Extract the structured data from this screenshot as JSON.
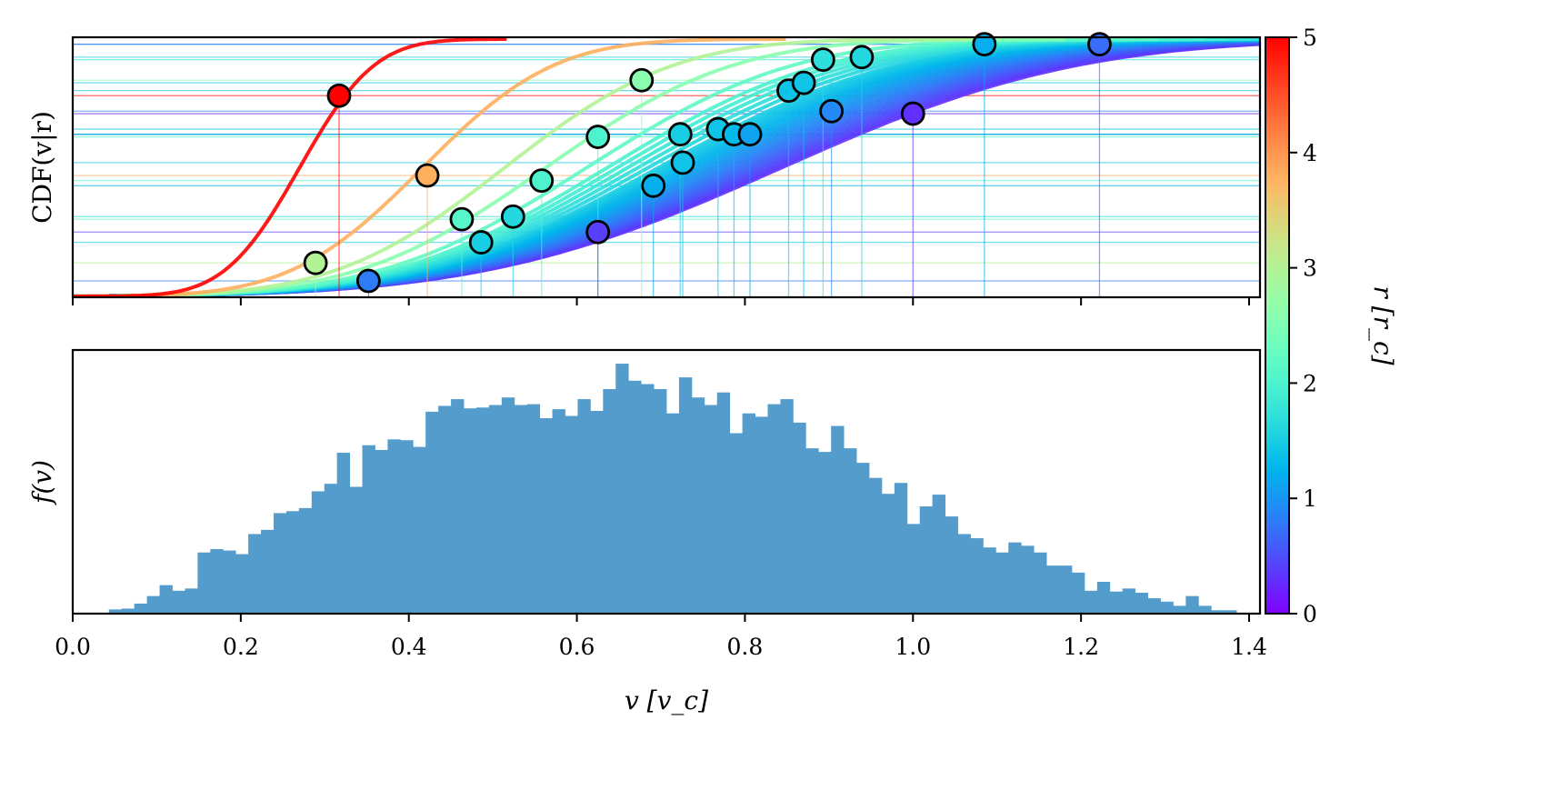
{
  "chart_data": [
    {
      "type": "line",
      "panel": "top",
      "ylabel": "CDF(v|r)",
      "xlim": [
        0,
        1.413
      ],
      "ylim": [
        0,
        1.0
      ],
      "xticks": [
        0.0,
        0.2,
        0.4,
        0.6,
        0.8,
        1.0,
        1.2,
        1.4
      ],
      "show_xtick_labels": false,
      "curve_model": {
        "type": "normal_cdf",
        "mean_intercept": 0.88,
        "mean_slope": -0.122,
        "sd_intercept": 0.29,
        "sd_slope": -0.044,
        "vmax_sd_multiple": 2.2
      },
      "curve_r_values": [
        0.3,
        0.35,
        0.4,
        0.45,
        0.5,
        0.55,
        0.6,
        0.65,
        0.7,
        0.75,
        0.8,
        0.85,
        0.9,
        0.95,
        1.0,
        1.05,
        1.1,
        1.15,
        1.2,
        1.25,
        1.3,
        1.35,
        1.4,
        1.45,
        1.5,
        1.6,
        1.7,
        1.8,
        1.9,
        2.0,
        2.2,
        2.6,
        3.0,
        3.8,
        5.0
      ],
      "points": [
        {
          "v": 0.317,
          "cdf": 0.78,
          "r": 5.0
        },
        {
          "v": 0.422,
          "cdf": 0.47,
          "r": 3.8
        },
        {
          "v": 0.289,
          "cdf": 0.13,
          "r": 3.0
        },
        {
          "v": 0.352,
          "cdf": 0.06,
          "r": 0.8
        },
        {
          "v": 0.677,
          "cdf": 0.84,
          "r": 2.6
        },
        {
          "v": 0.463,
          "cdf": 0.3,
          "r": 2.1
        },
        {
          "v": 0.486,
          "cdf": 0.21,
          "r": 1.5
        },
        {
          "v": 0.524,
          "cdf": 0.31,
          "r": 1.6
        },
        {
          "v": 0.558,
          "cdf": 0.45,
          "r": 2.0
        },
        {
          "v": 0.625,
          "cdf": 0.62,
          "r": 2.0
        },
        {
          "v": 0.625,
          "cdf": 0.25,
          "r": 0.4
        },
        {
          "v": 0.691,
          "cdf": 0.43,
          "r": 1.2
        },
        {
          "v": 0.723,
          "cdf": 0.63,
          "r": 1.5
        },
        {
          "v": 0.726,
          "cdf": 0.52,
          "r": 1.4
        },
        {
          "v": 0.768,
          "cdf": 0.65,
          "r": 1.4
        },
        {
          "v": 0.787,
          "cdf": 0.63,
          "r": 1.3
        },
        {
          "v": 0.806,
          "cdf": 0.63,
          "r": 1.1
        },
        {
          "v": 0.852,
          "cdf": 0.8,
          "r": 1.4
        },
        {
          "v": 0.87,
          "cdf": 0.83,
          "r": 1.4
        },
        {
          "v": 0.893,
          "cdf": 0.92,
          "r": 1.7
        },
        {
          "v": 0.903,
          "cdf": 0.72,
          "r": 0.9
        },
        {
          "v": 0.939,
          "cdf": 0.93,
          "r": 1.6
        },
        {
          "v": 1.0,
          "cdf": 0.71,
          "r": 0.3
        },
        {
          "v": 1.085,
          "cdf": 0.98,
          "r": 1.2
        },
        {
          "v": 1.222,
          "cdf": 0.98,
          "r": 0.7
        }
      ]
    },
    {
      "type": "bar",
      "subtype": "histogram",
      "panel": "bottom",
      "ylabel": "f(v)",
      "xlabel": "v [v_c]",
      "xlim": [
        0,
        1.413
      ],
      "ylim": [
        0,
        944
      ],
      "xticks": [
        0.0,
        0.2,
        0.4,
        0.6,
        0.8,
        1.0,
        1.2,
        1.4
      ],
      "xtick_labels": [
        "0.0",
        "0.2",
        "0.4",
        "0.6",
        "0.8",
        "1.0",
        "1.2",
        "1.4"
      ],
      "bin_range": [
        0.028,
        1.385
      ],
      "color": "#539ccc",
      "values": [
        2,
        15,
        18,
        36,
        63,
        102,
        82,
        90,
        219,
        231,
        226,
        213,
        285,
        300,
        360,
        367,
        378,
        438,
        465,
        576,
        454,
        603,
        586,
        624,
        621,
        597,
        723,
        744,
        768,
        735,
        738,
        747,
        774,
        747,
        750,
        700,
        732,
        708,
        768,
        726,
        804,
        895,
        834,
        822,
        804,
        717,
        846,
        774,
        747,
        792,
        646,
        717,
        705,
        750,
        768,
        684,
        592,
        579,
        672,
        592,
        540,
        486,
        429,
        468,
        321,
        384,
        426,
        348,
        285,
        270,
        237,
        219,
        255,
        243,
        219,
        172,
        172,
        147,
        82,
        114,
        79,
        90,
        75,
        55,
        43,
        28,
        63,
        28,
        12,
        12
      ]
    }
  ],
  "colorbar": {
    "label": "r [r_c]",
    "range": [
      0,
      5
    ],
    "ticks": [
      "0",
      "1",
      "2",
      "3",
      "4",
      "5"
    ],
    "colormap": "rainbow"
  }
}
